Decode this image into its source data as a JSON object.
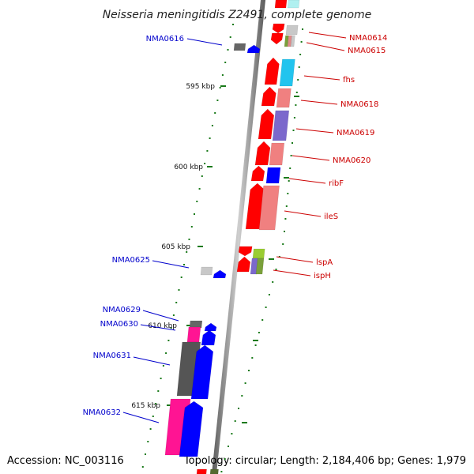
{
  "title": "Neisseria meningitidis Z2491, complete genome",
  "accession": "Accession: NC_003116",
  "topology": "Topology: circular; Length: 2,184,406 bp; Genes: 1,979",
  "colors": {
    "backbone": "#888888",
    "tick": "#1a7a1a",
    "forward_label": "#cc0000",
    "reverse_label": "#0000cc",
    "forward_strand": "#ff0000",
    "reverse_strand": "#0000ff"
  },
  "kbp_ticks": [
    "595 kbp",
    "600 kbp",
    "605 kbp",
    "610 kbp",
    "615 kbp"
  ],
  "forward_genes": [
    {
      "label": "NMA0614",
      "color": "#c8c8c8"
    },
    {
      "label": "NMA0615",
      "color": "#7aa03a"
    },
    {
      "label": "fhs",
      "color": "#22c4ee"
    },
    {
      "label": "NMA0618",
      "color": "#f08080"
    },
    {
      "label": "NMA0619",
      "color": "#7b68cc"
    },
    {
      "label": "NMA0620",
      "color": "#f08080"
    },
    {
      "label": "ribF",
      "color": "#0000ff"
    },
    {
      "label": "ileS",
      "color": "#f08080"
    },
    {
      "label": "lspA",
      "color": "#9acd32"
    },
    {
      "label": "ispH",
      "color": "#7aa03a"
    }
  ],
  "reverse_genes": [
    {
      "label": "NMA0616",
      "color": "#666666"
    },
    {
      "label": "NMA0625",
      "color": "#c8c8c8"
    },
    {
      "label": "NMA0629",
      "color": "#666666"
    },
    {
      "label": "NMA0630",
      "color": "#ff1493"
    },
    {
      "label": "NMA0631",
      "color": "#555555"
    },
    {
      "label": "NMA0632",
      "color": "#ff1493"
    }
  ]
}
